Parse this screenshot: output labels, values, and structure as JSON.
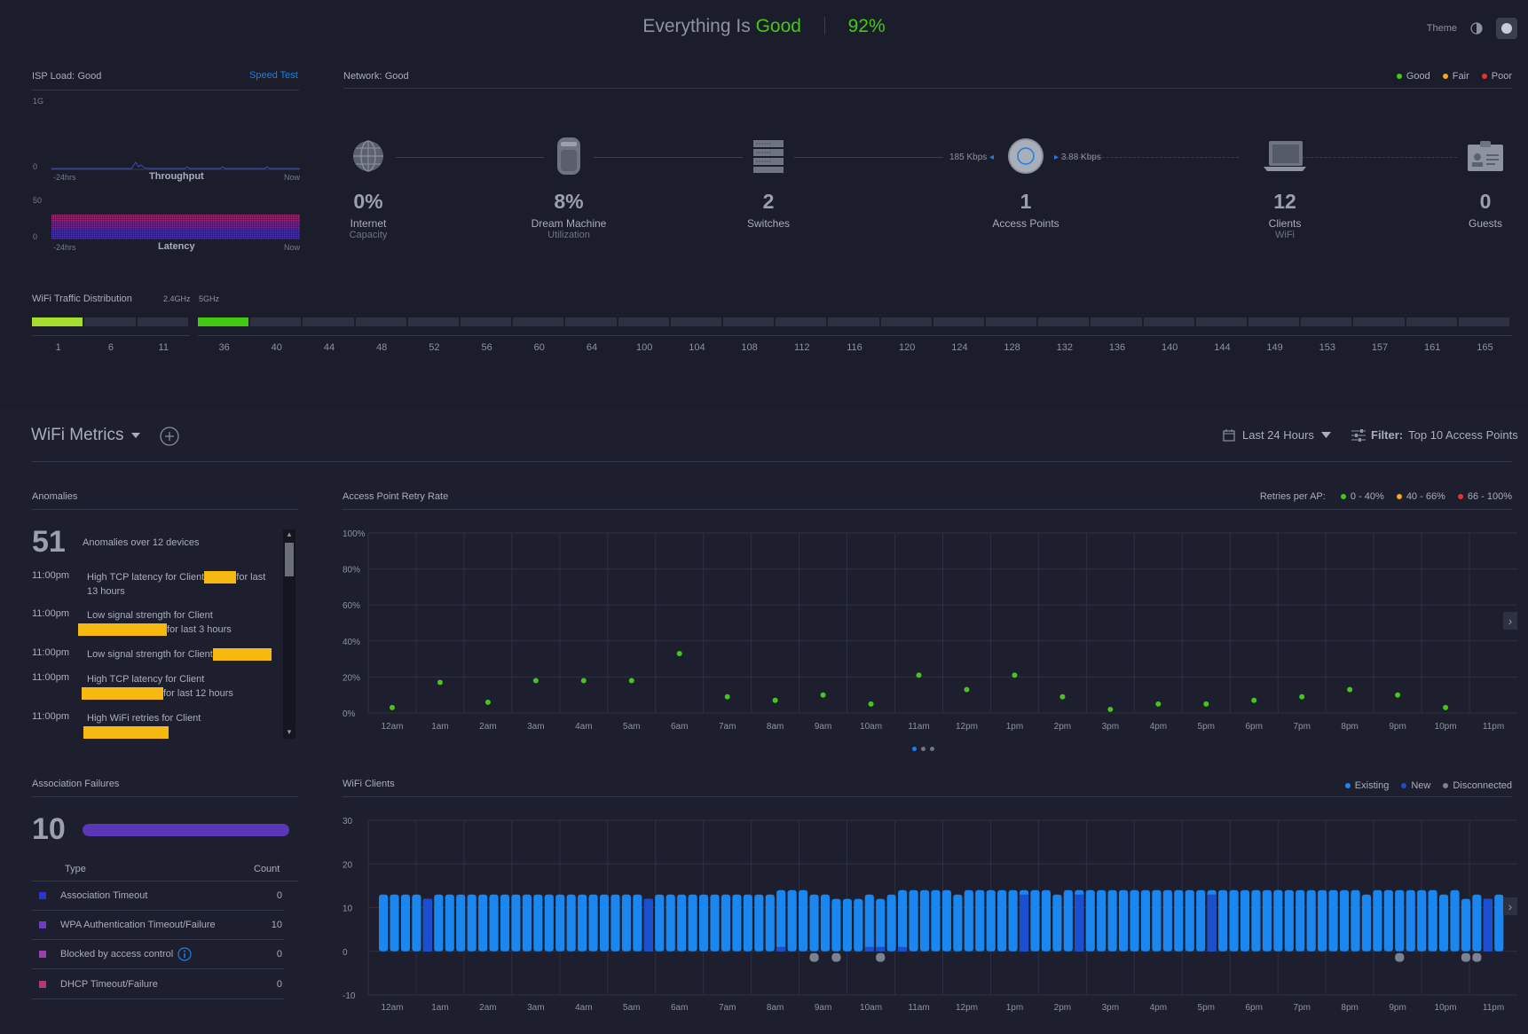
{
  "header": {
    "status_prefix": "Everything Is",
    "status_word": "Good",
    "score": "92%",
    "theme_label": "Theme"
  },
  "isp": {
    "label": "ISP Load:",
    "status": "Good",
    "speed_test": "Speed Test",
    "throughput": {
      "top": "1G",
      "bottom": "0",
      "start": "-24hrs",
      "title": "Throughput",
      "end": "Now"
    },
    "latency": {
      "top": "50",
      "bottom": "0",
      "start": "-24hrs",
      "title": "Latency",
      "end": "Now"
    }
  },
  "network": {
    "label": "Network:",
    "status": "Good",
    "legend": [
      {
        "label": "Good",
        "color": "#43c814"
      },
      {
        "label": "Fair",
        "color": "#f5a623"
      },
      {
        "label": "Poor",
        "color": "#e8332a"
      }
    ],
    "devices": [
      {
        "value": "0%",
        "label": "Internet",
        "sub": "Capacity",
        "icon": "globe-icon"
      },
      {
        "value": "8%",
        "label": "Dream Machine",
        "sub": "Utilization",
        "icon": "dream-machine-icon"
      },
      {
        "value": "2",
        "label": "Switches",
        "sub": "",
        "icon": "switch-icon"
      },
      {
        "value": "1",
        "label": "Access Points",
        "sub": "",
        "icon": "access-point-icon"
      },
      {
        "value": "12",
        "label": "Clients",
        "sub": "WiFi",
        "icon": "laptop-icon"
      },
      {
        "value": "0",
        "label": "Guests",
        "sub": "",
        "icon": "guest-badge-icon"
      }
    ],
    "upload_rate": "185 Kbps",
    "download_rate": "3.88 Kbps"
  },
  "wifi_traffic": {
    "title": "WiFi Traffic Distribution",
    "band_24": "2.4GHz",
    "band_5": "5GHz",
    "channels_24": [
      "1",
      "6",
      "11"
    ],
    "channels_5": [
      "36",
      "40",
      "44",
      "48",
      "52",
      "56",
      "60",
      "64",
      "100",
      "104",
      "108",
      "112",
      "116",
      "120",
      "124",
      "128",
      "132",
      "136",
      "140",
      "144",
      "149",
      "153",
      "157",
      "161",
      "165"
    ],
    "usage_24": [
      1,
      0,
      0
    ],
    "usage_5": [
      1,
      0,
      0,
      0,
      0,
      0,
      0,
      0,
      0,
      0,
      0,
      0,
      0,
      0,
      0,
      0,
      0,
      0,
      0,
      0,
      0,
      0,
      0,
      0,
      0
    ]
  },
  "metrics_bar": {
    "title": "WiFi Metrics",
    "range": "Last 24 Hours",
    "filter_label": "Filter:",
    "filter_value": "Top 10 Access Points"
  },
  "anomalies": {
    "title": "Anomalies",
    "count": "51",
    "summary": "Anomalies over 12 devices",
    "items": [
      {
        "time": "11:00pm",
        "pre": "High TCP latency for Client",
        "post": "for last 13 hours"
      },
      {
        "time": "11:00pm",
        "pre": "Low signal strength for Client",
        "post": "for last 3 hours"
      },
      {
        "time": "11:00pm",
        "pre": "Low signal strength for Client",
        "post": ""
      },
      {
        "time": "11:00pm",
        "pre": "High TCP latency for Client",
        "post": "for last 12 hours"
      },
      {
        "time": "11:00pm",
        "pre": "High WiFi retries for Client",
        "post": ""
      }
    ]
  },
  "assoc_failures": {
    "title": "Association Failures",
    "count": "10",
    "col_type": "Type",
    "col_count": "Count",
    "rows": [
      {
        "type": "Association Timeout",
        "count": "0",
        "color": "#2a37c9"
      },
      {
        "type": "WPA Authentication Timeout/Failure",
        "count": "10",
        "color": "#6b3fc2"
      },
      {
        "type": "Blocked by access control",
        "count": "0",
        "color": "#9b3fb0"
      },
      {
        "type": "DHCP Timeout/Failure",
        "count": "0",
        "color": "#b03a7a"
      }
    ]
  },
  "chart_data": [
    {
      "type": "scatter",
      "title": "Access Point Retry Rate",
      "legend_title": "Retries per AP:",
      "legend": [
        {
          "label": "0 - 40%",
          "color": "#43c814"
        },
        {
          "label": "40 - 66%",
          "color": "#f5a623"
        },
        {
          "label": "66 - 100%",
          "color": "#e8332a"
        }
      ],
      "categories": [
        "12am",
        "1am",
        "2am",
        "3am",
        "4am",
        "5am",
        "6am",
        "7am",
        "8am",
        "9am",
        "10am",
        "11am",
        "12pm",
        "1pm",
        "2pm",
        "3pm",
        "4pm",
        "5pm",
        "6pm",
        "7pm",
        "8pm",
        "9pm",
        "10pm",
        "11pm"
      ],
      "yticks": [
        "0%",
        "20%",
        "40%",
        "60%",
        "80%",
        "100%"
      ],
      "ylim": [
        0,
        100
      ],
      "values": [
        3,
        17,
        6,
        18,
        18,
        18,
        33,
        9,
        7,
        10,
        5,
        21,
        13,
        21,
        9,
        2,
        5,
        5,
        7,
        9,
        13,
        10,
        3,
        null
      ],
      "color": "#43c814"
    },
    {
      "type": "bar",
      "title": "WiFi Clients",
      "legend": [
        {
          "label": "Existing",
          "color": "#1a86f0"
        },
        {
          "label": "New",
          "color": "#1a4fd0"
        },
        {
          "label": "Disconnected",
          "color": "#7d8290"
        }
      ],
      "categories": [
        "12am",
        "1am",
        "2am",
        "3am",
        "4am",
        "5am",
        "6am",
        "7am",
        "8am",
        "9am",
        "10am",
        "11am",
        "12pm",
        "1pm",
        "2pm",
        "3pm",
        "4pm",
        "5pm",
        "6pm",
        "7pm",
        "8pm",
        "9pm",
        "10pm",
        "11pm"
      ],
      "yticks": [
        "-10",
        "0",
        "10",
        "20",
        "30"
      ],
      "ylim": [
        -10,
        30
      ],
      "existing": [
        13,
        13,
        13,
        13,
        12,
        13,
        13,
        13,
        13,
        13,
        13,
        13,
        13,
        13,
        13,
        13,
        13,
        13,
        13,
        13,
        13,
        13,
        13,
        13,
        12,
        13,
        13,
        13,
        13,
        13,
        13,
        13,
        13,
        13,
        13,
        13,
        14,
        14,
        14,
        13,
        13,
        12,
        12,
        12,
        13,
        12,
        13,
        14,
        14,
        14,
        14,
        14,
        13,
        14,
        14,
        14,
        14,
        14,
        14,
        14,
        14,
        13,
        14,
        14,
        14,
        14,
        14,
        14,
        14,
        14,
        14,
        14,
        14,
        14,
        14,
        14,
        14,
        14,
        14,
        14,
        14,
        14,
        14,
        14,
        14,
        14,
        14,
        14,
        14,
        13,
        14,
        14,
        14,
        14,
        14,
        14,
        13,
        14,
        12,
        13,
        12,
        13
      ],
      "new": [
        0,
        0,
        0,
        0,
        12,
        0,
        0,
        0,
        0,
        0,
        0,
        0,
        0,
        0,
        0,
        0,
        0,
        0,
        0,
        0,
        0,
        0,
        0,
        0,
        12,
        0,
        0,
        0,
        0,
        0,
        0,
        0,
        0,
        0,
        0,
        0,
        1,
        0,
        0,
        0,
        0,
        0,
        0,
        0,
        1,
        1,
        0,
        1,
        0,
        0,
        0,
        0,
        0,
        0,
        0,
        0,
        0,
        0,
        13,
        0,
        0,
        0,
        0,
        13,
        0,
        0,
        0,
        0,
        0,
        0,
        0,
        0,
        0,
        0,
        0,
        13,
        0,
        0,
        0,
        0,
        0,
        0,
        0,
        0,
        0,
        0,
        0,
        0,
        0,
        0,
        0,
        0,
        0,
        0,
        0,
        0,
        0,
        0,
        0,
        0,
        12,
        0
      ],
      "disconnected": [
        0,
        0,
        0,
        0,
        0,
        0,
        0,
        0,
        0,
        0,
        0,
        0,
        0,
        0,
        0,
        0,
        0,
        0,
        0,
        0,
        0,
        0,
        0,
        0,
        0,
        0,
        0,
        0,
        0,
        0,
        0,
        0,
        0,
        0,
        0,
        0,
        0,
        0,
        0,
        -2,
        0,
        -2,
        0,
        0,
        0,
        -2,
        0,
        0,
        0,
        0,
        0,
        0,
        0,
        0,
        0,
        0,
        0,
        0,
        0,
        0,
        0,
        0,
        0,
        0,
        0,
        0,
        0,
        0,
        0,
        0,
        0,
        0,
        0,
        0,
        0,
        0,
        0,
        0,
        0,
        0,
        0,
        0,
        0,
        0,
        0,
        0,
        0,
        0,
        0,
        0,
        0,
        0,
        -2,
        0,
        0,
        0,
        0,
        0,
        -2,
        -2,
        0,
        0
      ]
    }
  ]
}
